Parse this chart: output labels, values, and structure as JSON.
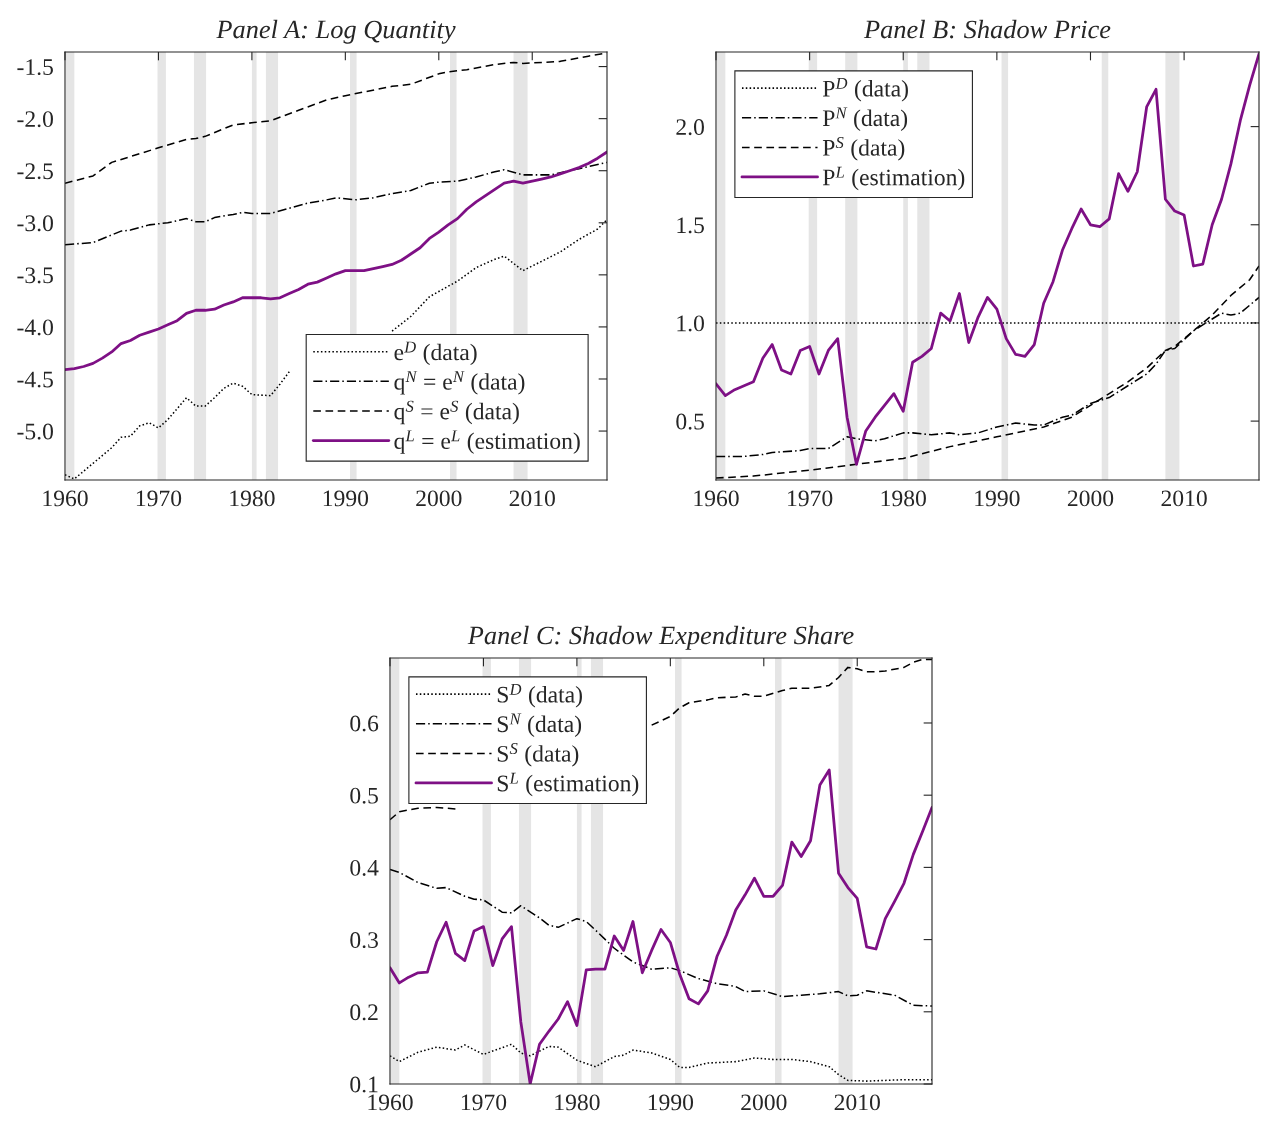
{
  "chart_data": [
    {
      "type": "line",
      "title": "Panel A: Log Quantity",
      "x": [
        1960,
        1961,
        1962,
        1963,
        1964,
        1965,
        1966,
        1967,
        1968,
        1969,
        1970,
        1971,
        1972,
        1973,
        1974,
        1975,
        1976,
        1977,
        1978,
        1979,
        1980,
        1981,
        1982,
        1983,
        1984,
        1985,
        1986,
        1987,
        1988,
        1989,
        1990,
        1991,
        1992,
        1993,
        1994,
        1995,
        1996,
        1997,
        1998,
        1999,
        2000,
        2001,
        2002,
        2003,
        2004,
        2005,
        2006,
        2007,
        2008,
        2009,
        2010,
        2011,
        2012,
        2013,
        2014,
        2015,
        2016,
        2017,
        2018
      ],
      "series": [
        {
          "name": "e$^{D}$ (data)",
          "color": "#000000",
          "line_style": "dotted",
          "x": [
            1960,
            1961,
            1963,
            1965,
            1966,
            1967,
            1968,
            1969,
            1970,
            1971,
            1973,
            1974,
            1975,
            1976,
            1977,
            1978,
            1979,
            1980,
            1982,
            1983,
            1984,
            1990,
            1995,
            1997,
            1999,
            2000,
            2002,
            2004,
            2006,
            2007,
            2009,
            2011,
            2013,
            2015,
            2017,
            2018
          ],
          "values": [
            -5.42,
            -5.46,
            -5.31,
            -5.16,
            -5.06,
            -5.05,
            -4.95,
            -4.92,
            -4.97,
            -4.89,
            -4.68,
            -4.76,
            -4.76,
            -4.68,
            -4.59,
            -4.54,
            -4.57,
            -4.65,
            -4.66,
            -4.55,
            -4.43,
            null,
            -4.04,
            -3.9,
            -3.71,
            -3.66,
            -3.56,
            -3.43,
            -3.35,
            -3.32,
            -3.46,
            -3.37,
            -3.28,
            -3.16,
            -3.06,
            -2.97
          ]
        },
        {
          "name": "q$^{N}$ = e$^{N}$ (data)",
          "color": "#000000",
          "line_style": "dashdot",
          "x": [
            1960,
            1963,
            1966,
            1967,
            1969,
            1971,
            1973,
            1974,
            1975,
            1976,
            1978,
            1979,
            1980,
            1982,
            1984,
            1986,
            1988,
            1989,
            1990,
            1991,
            1993,
            1995,
            1997,
            1999,
            2000,
            2002,
            2004,
            2006,
            2007,
            2009,
            2012,
            2015,
            2018
          ],
          "values": [
            -3.21,
            -3.19,
            -3.08,
            -3.07,
            -3.02,
            -3.0,
            -2.96,
            -2.99,
            -2.99,
            -2.95,
            -2.92,
            -2.9,
            -2.91,
            -2.91,
            -2.86,
            -2.81,
            -2.78,
            -2.76,
            -2.77,
            -2.78,
            -2.76,
            -2.72,
            -2.69,
            -2.62,
            -2.61,
            -2.6,
            -2.56,
            -2.51,
            -2.49,
            -2.54,
            -2.54,
            -2.48,
            -2.42
          ]
        },
        {
          "name": "q$^{S}$ = e$^{S}$ (data)",
          "color": "#000000",
          "line_style": "dashed",
          "x": [
            1960,
            1963,
            1965,
            1970,
            1973,
            1974,
            1975,
            1978,
            1980,
            1982,
            1985,
            1988,
            1990,
            1995,
            1997,
            2000,
            2001,
            2003,
            2006,
            2008,
            2009,
            2013,
            2016,
            2018
          ],
          "values": [
            -2.62,
            -2.55,
            -2.42,
            -2.28,
            -2.2,
            -2.19,
            -2.17,
            -2.06,
            -2.04,
            -2.02,
            -1.92,
            -1.82,
            -1.78,
            -1.69,
            -1.67,
            -1.57,
            -1.55,
            -1.53,
            -1.48,
            -1.46,
            -1.47,
            -1.45,
            -1.4,
            -1.37
          ]
        },
        {
          "name": "q$^{L}$ = e$^{L}$ (estimation)",
          "color": "#7e1085",
          "line_style": "solid",
          "values": [
            -4.41,
            -4.4,
            -4.38,
            -4.35,
            -4.3,
            -4.24,
            -4.16,
            -4.13,
            -4.08,
            -4.05,
            -4.02,
            -3.98,
            -3.94,
            -3.87,
            -3.84,
            -3.84,
            -3.83,
            -3.79,
            -3.76,
            -3.72,
            -3.72,
            -3.72,
            -3.73,
            -3.72,
            -3.68,
            -3.64,
            -3.59,
            -3.57,
            -3.53,
            -3.49,
            -3.46,
            -3.46,
            -3.46,
            -3.44,
            -3.42,
            -3.4,
            -3.36,
            -3.3,
            -3.24,
            -3.15,
            -3.09,
            -3.02,
            -2.96,
            -2.87,
            -2.8,
            -2.74,
            -2.68,
            -2.62,
            -2.6,
            -2.62,
            -2.6,
            -2.58,
            -2.56,
            -2.53,
            -2.5,
            -2.47,
            -2.43,
            -2.38,
            -2.32
          ]
        }
      ],
      "xlim": [
        1960,
        2018
      ],
      "xticks": [
        1960,
        1970,
        1980,
        1990,
        2000,
        2010
      ],
      "ylim": [
        -5.47,
        -1.36
      ],
      "yticks": [
        {
          "value": -5.0,
          "label": "-5.0"
        },
        {
          "value": -4.5,
          "label": "-4.5"
        },
        {
          "value": -4.0,
          "label": "-4.0"
        },
        {
          "value": -3.5,
          "label": "-3.5"
        },
        {
          "value": -3.0,
          "label": "-3.0"
        },
        {
          "value": -2.5,
          "label": "-2.5"
        },
        {
          "value": -2.0,
          "label": "-2.0"
        },
        {
          "value": -1.5,
          "label": "-1.5"
        }
      ],
      "bands": [
        {
          "axis": "x",
          "from": 1960.1,
          "to": 1961.0,
          "color": "#e5e5e5"
        },
        {
          "axis": "x",
          "from": 1969.9,
          "to": 1970.8,
          "color": "#e5e5e5"
        },
        {
          "axis": "x",
          "from": 1973.8,
          "to": 1975.1,
          "color": "#e5e5e5"
        },
        {
          "axis": "x",
          "from": 1980.0,
          "to": 1980.5,
          "color": "#e5e5e5"
        },
        {
          "axis": "x",
          "from": 1981.5,
          "to": 1982.8,
          "color": "#e5e5e5"
        },
        {
          "axis": "x",
          "from": 1990.5,
          "to": 1991.2,
          "color": "#e5e5e5"
        },
        {
          "axis": "x",
          "from": 2001.2,
          "to": 2001.9,
          "color": "#e5e5e5"
        },
        {
          "axis": "x",
          "from": 2008.0,
          "to": 2009.5,
          "color": "#e5e5e5"
        }
      ],
      "grid": false,
      "legend": "bottom right"
    },
    {
      "type": "line",
      "title": "Panel B: Shadow Price",
      "x": [
        1960,
        1961,
        1962,
        1963,
        1964,
        1965,
        1966,
        1967,
        1968,
        1969,
        1970,
        1971,
        1972,
        1973,
        1974,
        1975,
        1976,
        1977,
        1978,
        1979,
        1980,
        1981,
        1982,
        1983,
        1984,
        1985,
        1986,
        1987,
        1988,
        1989,
        1990,
        1991,
        1992,
        1993,
        1994,
        1995,
        1996,
        1997,
        1998,
        1999,
        2000,
        2001,
        2002,
        2003,
        2004,
        2005,
        2006,
        2007,
        2008,
        2009,
        2010,
        2011,
        2012,
        2013,
        2014,
        2015,
        2016,
        2017,
        2018
      ],
      "series": [
        {
          "name": "P$^{D}$ (data)",
          "color": "#000000",
          "line_style": "dotted",
          "x": [
            1960,
            2018
          ],
          "values": [
            1.0,
            1.0
          ]
        },
        {
          "name": "P$^{N}$ (data)",
          "color": "#000000",
          "line_style": "dashdot",
          "x": [
            1960,
            1963,
            1965,
            1966,
            1969,
            1970,
            1972,
            1973,
            1974,
            1975,
            1977,
            1978,
            1980,
            1981,
            1983,
            1985,
            1986,
            1988,
            1990,
            1992,
            1994,
            1995,
            1997,
            1998,
            2000,
            2002,
            2004,
            2006,
            2007,
            2008,
            2009,
            2011,
            2013,
            2014,
            2015,
            2016,
            2018
          ],
          "values": [
            0.32,
            0.32,
            0.33,
            0.34,
            0.35,
            0.36,
            0.36,
            0.39,
            0.42,
            0.41,
            0.4,
            0.41,
            0.44,
            0.44,
            0.43,
            0.44,
            0.43,
            0.44,
            0.47,
            0.49,
            0.48,
            0.48,
            0.52,
            0.53,
            0.59,
            0.62,
            0.68,
            0.74,
            0.79,
            0.86,
            0.87,
            0.96,
            1.02,
            1.05,
            1.04,
            1.05,
            1.13
          ]
        },
        {
          "name": "P$^{S}$ (data)",
          "color": "#000000",
          "line_style": "dashed",
          "x": [
            1960,
            1964,
            1970,
            1975,
            1980,
            1985,
            1990,
            1995,
            1998,
            2000,
            2002,
            2004,
            2006,
            2008,
            2009,
            2011,
            2013,
            2015,
            2017,
            2018
          ],
          "values": [
            0.21,
            0.22,
            0.25,
            0.28,
            0.31,
            0.37,
            0.42,
            0.47,
            0.52,
            0.58,
            0.64,
            0.7,
            0.77,
            0.86,
            0.88,
            0.96,
            1.04,
            1.14,
            1.22,
            1.29
          ]
        },
        {
          "name": "P$^{L}$ (estimation)",
          "color": "#7e1085",
          "line_style": "solid",
          "values": [
            0.69,
            0.63,
            0.66,
            0.68,
            0.7,
            0.82,
            0.89,
            0.76,
            0.74,
            0.86,
            0.88,
            0.74,
            0.86,
            0.92,
            0.52,
            0.28,
            0.45,
            0.52,
            0.58,
            0.64,
            0.55,
            0.8,
            0.83,
            0.87,
            1.05,
            1.01,
            1.15,
            0.9,
            1.03,
            1.13,
            1.07,
            0.92,
            0.84,
            0.83,
            0.89,
            1.1,
            1.21,
            1.37,
            1.48,
            1.58,
            1.5,
            1.49,
            1.53,
            1.76,
            1.67,
            1.77,
            2.1,
            2.19,
            1.63,
            1.57,
            1.55,
            1.29,
            1.3,
            1.5,
            1.63,
            1.81,
            2.03,
            2.21,
            2.37
          ]
        }
      ],
      "xlim": [
        1960,
        2018
      ],
      "xticks": [
        1960,
        1970,
        1980,
        1990,
        2000,
        2010
      ],
      "ylim": [
        0.2,
        2.38
      ],
      "yticks": [
        {
          "value": 0.5,
          "label": "0.5"
        },
        {
          "value": 1.0,
          "label": "1.0"
        },
        {
          "value": 1.5,
          "label": "1.5"
        },
        {
          "value": 2.0,
          "label": "2.0"
        }
      ],
      "bands": [
        {
          "axis": "x",
          "from": 1960.1,
          "to": 1961.0,
          "color": "#e5e5e5"
        },
        {
          "axis": "x",
          "from": 1969.9,
          "to": 1970.8,
          "color": "#e5e5e5"
        },
        {
          "axis": "x",
          "from": 1973.8,
          "to": 1975.1,
          "color": "#e5e5e5"
        },
        {
          "axis": "x",
          "from": 1980.0,
          "to": 1980.5,
          "color": "#e5e5e5"
        },
        {
          "axis": "x",
          "from": 1981.5,
          "to": 1982.8,
          "color": "#e5e5e5"
        },
        {
          "axis": "x",
          "from": 1990.5,
          "to": 1991.2,
          "color": "#e5e5e5"
        },
        {
          "axis": "x",
          "from": 2001.2,
          "to": 2001.9,
          "color": "#e5e5e5"
        },
        {
          "axis": "x",
          "from": 2008.0,
          "to": 2009.5,
          "color": "#e5e5e5"
        }
      ],
      "grid": false,
      "legend": "top left"
    },
    {
      "type": "line",
      "title": "Panel C: Shadow Expenditure Share",
      "x": [
        1960,
        1961,
        1962,
        1963,
        1964,
        1965,
        1966,
        1967,
        1968,
        1969,
        1970,
        1971,
        1972,
        1973,
        1974,
        1975,
        1976,
        1977,
        1978,
        1979,
        1980,
        1981,
        1982,
        1983,
        1984,
        1985,
        1986,
        1987,
        1988,
        1989,
        1990,
        1991,
        1992,
        1993,
        1994,
        1995,
        1996,
        1997,
        1998,
        1999,
        2000,
        2001,
        2002,
        2003,
        2004,
        2005,
        2006,
        2007,
        2008,
        2009,
        2010,
        2011,
        2012,
        2013,
        2014,
        2015,
        2016,
        2017,
        2018
      ],
      "series": [
        {
          "name": "S$^{D}$ (data)",
          "color": "#000000",
          "line_style": "dotted",
          "x": [
            1960,
            1961,
            1963,
            1965,
            1967,
            1968,
            1970,
            1973,
            1974,
            1975,
            1977,
            1978,
            1980,
            1982,
            1984,
            1985,
            1986,
            1988,
            1990,
            1991,
            1992,
            1994,
            1997,
            1999,
            2001,
            2003,
            2005,
            2007,
            2008,
            2009,
            2011,
            2013,
            2015,
            2018
          ],
          "values": [
            0.139,
            0.131,
            0.144,
            0.151,
            0.147,
            0.154,
            0.141,
            0.155,
            0.143,
            0.139,
            0.152,
            0.151,
            0.133,
            0.124,
            0.138,
            0.14,
            0.147,
            0.143,
            0.134,
            0.123,
            0.123,
            0.129,
            0.131,
            0.136,
            0.134,
            0.134,
            0.131,
            0.124,
            0.113,
            0.105,
            0.104,
            0.105,
            0.106,
            0.106
          ]
        },
        {
          "name": "S$^{N}$ (data)",
          "color": "#000000",
          "line_style": "dashdot",
          "x": [
            1960,
            1961,
            1963,
            1965,
            1966,
            1968,
            1969,
            1970,
            1972,
            1973,
            1974,
            1976,
            1977,
            1978,
            1980,
            1981,
            1982,
            1984,
            1986,
            1988,
            1990,
            1991,
            1993,
            1995,
            1997,
            1998,
            2000,
            2002,
            2004,
            2006,
            2008,
            2009,
            2010,
            2011,
            2014,
            2016,
            2018
          ],
          "values": [
            0.397,
            0.393,
            0.379,
            0.371,
            0.372,
            0.36,
            0.356,
            0.355,
            0.338,
            0.337,
            0.347,
            0.33,
            0.32,
            0.317,
            0.329,
            0.325,
            0.313,
            0.288,
            0.269,
            0.259,
            0.261,
            0.257,
            0.246,
            0.239,
            0.235,
            0.228,
            0.229,
            0.221,
            0.223,
            0.225,
            0.228,
            0.222,
            0.223,
            0.229,
            0.223,
            0.209,
            0.208
          ]
        },
        {
          "name": "S$^{S}$ (data)",
          "color": "#000000",
          "line_style": "dashed",
          "x": [
            1960,
            1961,
            1963,
            1965,
            1967,
            1975,
            1988,
            1990,
            1991,
            1992,
            1994,
            1995,
            1997,
            1998,
            1999,
            2000,
            2002,
            2003,
            2005,
            2007,
            2008,
            2009,
            2010,
            2011,
            2012,
            2013,
            2015,
            2016,
            2017,
            2018
          ],
          "values": [
            0.466,
            0.477,
            0.482,
            0.483,
            0.481,
            null,
            0.597,
            0.609,
            0.621,
            0.628,
            0.632,
            0.635,
            0.636,
            0.64,
            0.637,
            0.637,
            0.645,
            0.648,
            0.648,
            0.652,
            0.663,
            0.677,
            0.675,
            0.671,
            0.671,
            0.672,
            0.677,
            0.684,
            0.688,
            0.688
          ]
        },
        {
          "name": "S$^{L}$ (estimation)",
          "color": "#7e1085",
          "line_style": "solid",
          "values": [
            0.261,
            0.24,
            0.248,
            0.254,
            0.255,
            0.297,
            0.324,
            0.281,
            0.271,
            0.312,
            0.318,
            0.264,
            0.301,
            0.318,
            0.186,
            0.1,
            0.155,
            0.173,
            0.19,
            0.214,
            0.181,
            0.258,
            0.259,
            0.259,
            0.305,
            0.285,
            0.325,
            0.254,
            0.285,
            0.314,
            0.296,
            0.252,
            0.218,
            0.211,
            0.229,
            0.277,
            0.306,
            0.341,
            0.362,
            0.385,
            0.36,
            0.36,
            0.375,
            0.435,
            0.415,
            0.437,
            0.514,
            0.535,
            0.392,
            0.372,
            0.357,
            0.29,
            0.287,
            0.329,
            0.353,
            0.378,
            0.418,
            0.45,
            0.483
          ]
        }
      ],
      "xlim": [
        1960,
        2018
      ],
      "xticks": [
        1960,
        1970,
        1980,
        1990,
        2000,
        2010
      ],
      "ylim": [
        0.1,
        0.69
      ],
      "yticks": [
        {
          "value": 0.1,
          "label": "0.1"
        },
        {
          "value": 0.2,
          "label": "0.2"
        },
        {
          "value": 0.3,
          "label": "0.3"
        },
        {
          "value": 0.4,
          "label": "0.4"
        },
        {
          "value": 0.5,
          "label": "0.5"
        },
        {
          "value": 0.6,
          "label": "0.6"
        }
      ],
      "bands": [
        {
          "axis": "x",
          "from": 1960.1,
          "to": 1961.0,
          "color": "#e5e5e5"
        },
        {
          "axis": "x",
          "from": 1969.9,
          "to": 1970.8,
          "color": "#e5e5e5"
        },
        {
          "axis": "x",
          "from": 1973.8,
          "to": 1975.1,
          "color": "#e5e5e5"
        },
        {
          "axis": "x",
          "from": 1980.0,
          "to": 1980.5,
          "color": "#e5e5e5"
        },
        {
          "axis": "x",
          "from": 1981.5,
          "to": 1982.8,
          "color": "#e5e5e5"
        },
        {
          "axis": "x",
          "from": 1990.5,
          "to": 1991.2,
          "color": "#e5e5e5"
        },
        {
          "axis": "x",
          "from": 2001.2,
          "to": 2001.9,
          "color": "#e5e5e5"
        },
        {
          "axis": "x",
          "from": 2008.0,
          "to": 2009.5,
          "color": "#e5e5e5"
        }
      ],
      "grid": false,
      "legend": "top left"
    }
  ]
}
